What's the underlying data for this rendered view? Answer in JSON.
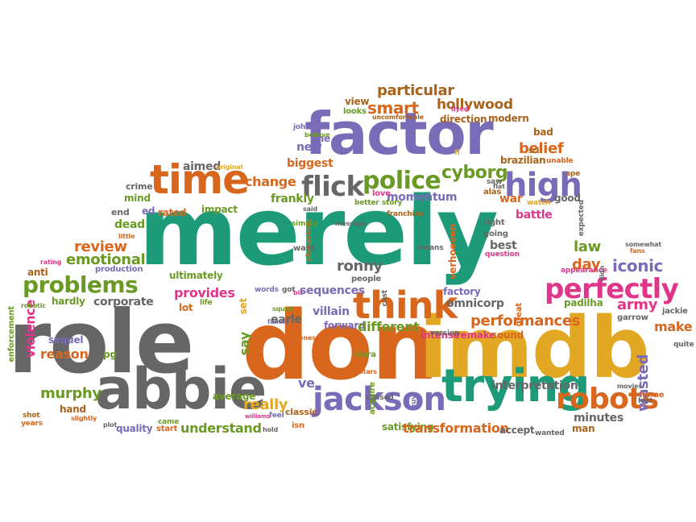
{
  "colors": {
    "green": "#1d9a78",
    "orange": "#d8661d",
    "purple": "#7a6bb8",
    "gray": "#666666",
    "yellow": "#e3a823",
    "pink": "#e0368a",
    "olive": "#6b9a24",
    "brown": "#a8621a"
  },
  "words": [
    {
      "t": "merely",
      "c": "green"
    },
    {
      "t": "role",
      "c": "gray"
    },
    {
      "t": "don",
      "c": "orange"
    },
    {
      "t": "imdb",
      "c": "yellow"
    },
    {
      "t": "factor",
      "c": "purple"
    },
    {
      "t": "abbie",
      "c": "gray"
    },
    {
      "t": "trying",
      "c": "green"
    },
    {
      "t": "time",
      "c": "orange"
    },
    {
      "t": "think",
      "c": "orange"
    },
    {
      "t": "jackson",
      "c": "purple"
    },
    {
      "t": "perfectly",
      "c": "pink"
    },
    {
      "t": "high",
      "c": "purple"
    },
    {
      "t": "flick",
      "c": "gray"
    },
    {
      "t": "police",
      "c": "olive"
    },
    {
      "t": "robots",
      "c": "orange"
    },
    {
      "t": "problems",
      "c": "olive"
    },
    {
      "t": "cyborg",
      "c": "olive"
    },
    {
      "t": "particular",
      "c": "brown"
    },
    {
      "t": "hollywood",
      "c": "brown"
    },
    {
      "t": "smart",
      "c": "orange"
    },
    {
      "t": "view",
      "c": "brown"
    },
    {
      "t": "looks",
      "c": "olive"
    },
    {
      "t": "uncomfortable",
      "c": "brown"
    },
    {
      "t": "direction",
      "c": "brown"
    },
    {
      "t": "modern",
      "c": "brown"
    },
    {
      "t": "bad",
      "c": "brown"
    },
    {
      "t": "belief",
      "c": "orange"
    },
    {
      "t": "brazilian",
      "c": "brown"
    },
    {
      "t": "unable",
      "c": "orange"
    },
    {
      "t": "sci",
      "c": "brown"
    },
    {
      "t": "ape",
      "c": "brown"
    },
    {
      "t": "fi",
      "c": "yellow"
    },
    {
      "t": "new",
      "c": "purple"
    },
    {
      "t": "biggest",
      "c": "orange"
    },
    {
      "t": "aimed",
      "c": "gray"
    },
    {
      "t": "original",
      "c": "yellow"
    },
    {
      "t": "change",
      "c": "orange"
    },
    {
      "t": "frankly",
      "c": "olive"
    },
    {
      "t": "crime",
      "c": "gray"
    },
    {
      "t": "mind",
      "c": "olive"
    },
    {
      "t": "end",
      "c": "gray"
    },
    {
      "t": "ed",
      "c": "purple"
    },
    {
      "t": "rated",
      "c": "orange"
    },
    {
      "t": "impact",
      "c": "olive"
    },
    {
      "t": "dead",
      "c": "olive"
    },
    {
      "t": "little",
      "c": "orange"
    },
    {
      "t": "review",
      "c": "orange"
    },
    {
      "t": "emotional",
      "c": "olive"
    },
    {
      "t": "rating",
      "c": "pink"
    },
    {
      "t": "anti",
      "c": "brown"
    },
    {
      "t": "production",
      "c": "purple"
    },
    {
      "t": "hardly",
      "c": "olive"
    },
    {
      "t": "corporate",
      "c": "gray"
    },
    {
      "t": "ultimately",
      "c": "olive"
    },
    {
      "t": "provides",
      "c": "pink"
    },
    {
      "t": "violence",
      "c": "pink"
    },
    {
      "t": "enforcement",
      "c": "olive"
    },
    {
      "t": "robotic",
      "c": "olive"
    },
    {
      "t": "reason",
      "c": "orange"
    },
    {
      "t": "pg",
      "c": "olive"
    },
    {
      "t": "sequel",
      "c": "purple"
    },
    {
      "t": "murphy",
      "c": "olive"
    },
    {
      "t": "hand",
      "c": "brown"
    },
    {
      "t": "slightly",
      "c": "orange"
    },
    {
      "t": "shot",
      "c": "brown"
    },
    {
      "t": "years",
      "c": "orange"
    },
    {
      "t": "quality",
      "c": "purple"
    },
    {
      "t": "plot",
      "c": "gray"
    },
    {
      "t": "came",
      "c": "olive"
    },
    {
      "t": "start",
      "c": "orange"
    },
    {
      "t": "understand",
      "c": "olive"
    },
    {
      "t": "average",
      "c": "olive"
    },
    {
      "t": "really",
      "c": "yellow"
    },
    {
      "t": "feel",
      "c": "purple"
    },
    {
      "t": "williams",
      "c": "pink"
    },
    {
      "t": "classic",
      "c": "brown"
    },
    {
      "t": "hold",
      "c": "gray"
    },
    {
      "t": "isn",
      "c": "orange"
    },
    {
      "t": "ve",
      "c": "purple"
    },
    {
      "t": "say",
      "c": "olive"
    },
    {
      "t": "set",
      "c": "yellow"
    },
    {
      "t": "lot",
      "c": "orange"
    },
    {
      "t": "life",
      "c": "olive"
    },
    {
      "t": "words",
      "c": "purple"
    },
    {
      "t": "got",
      "c": "gray"
    },
    {
      "t": "bit",
      "c": "pink"
    },
    {
      "t": "family",
      "c": "purple"
    },
    {
      "t": "squad",
      "c": "olive"
    },
    {
      "t": "earle",
      "c": "gray"
    },
    {
      "t": "villain",
      "c": "purple"
    },
    {
      "t": "forward",
      "c": "purple"
    },
    {
      "t": "sequences",
      "c": "purple"
    },
    {
      "t": "people",
      "c": "gray"
    },
    {
      "t": "ronny",
      "c": "gray"
    },
    {
      "t": "different",
      "c": "olive"
    },
    {
      "t": "clara",
      "c": "olive"
    },
    {
      "t": "scenes",
      "c": "orange"
    },
    {
      "t": "caused",
      "c": "gray"
    },
    {
      "t": "acquire",
      "c": "olive"
    },
    {
      "t": "guy",
      "c": "purple"
    },
    {
      "t": "satisfying",
      "c": "olive"
    },
    {
      "t": "transformation",
      "c": "orange"
    },
    {
      "t": "performances",
      "c": "orange"
    },
    {
      "t": "intense",
      "c": "pink"
    },
    {
      "t": "remake",
      "c": "pink"
    },
    {
      "t": "sound",
      "c": "orange"
    },
    {
      "t": "version",
      "c": "gray"
    },
    {
      "t": "factory",
      "c": "purple"
    },
    {
      "t": "omnicorp",
      "c": "gray"
    },
    {
      "t": "verhoeven",
      "c": "orange"
    },
    {
      "t": "means",
      "c": "gray"
    },
    {
      "t": "cast",
      "c": "gray"
    },
    {
      "t": "interpretation",
      "c": "gray"
    },
    {
      "t": "accept",
      "c": "gray"
    },
    {
      "t": "wanted",
      "c": "gray"
    },
    {
      "t": "minutes",
      "c": "gray"
    },
    {
      "t": "man",
      "c": "brown"
    },
    {
      "t": "wasted",
      "c": "purple"
    },
    {
      "t": "lost",
      "c": "gray"
    },
    {
      "t": "home",
      "c": "orange"
    },
    {
      "t": "movies",
      "c": "gray"
    },
    {
      "t": "quite",
      "c": "gray"
    },
    {
      "t": "make",
      "c": "orange"
    },
    {
      "t": "jackie",
      "c": "gray"
    },
    {
      "t": "garrow",
      "c": "gray"
    },
    {
      "t": "army",
      "c": "pink"
    },
    {
      "t": "padilha",
      "c": "olive"
    },
    {
      "t": "great",
      "c": "orange"
    },
    {
      "t": "day",
      "c": "orange"
    },
    {
      "t": "iconic",
      "c": "purple"
    },
    {
      "t": "law",
      "c": "olive"
    },
    {
      "t": "best",
      "c": "gray"
    },
    {
      "t": "question",
      "c": "pink"
    },
    {
      "t": "appearance",
      "c": "pink"
    },
    {
      "t": "fans",
      "c": "orange"
    },
    {
      "t": "somewhat",
      "c": "gray"
    },
    {
      "t": "expected",
      "c": "gray"
    },
    {
      "t": "battle",
      "c": "pink"
    },
    {
      "t": "right",
      "c": "gray"
    },
    {
      "t": "going",
      "c": "gray"
    },
    {
      "t": "war",
      "c": "orange"
    },
    {
      "t": "watch",
      "c": "yellow"
    },
    {
      "t": "good",
      "c": "gray"
    },
    {
      "t": "alas",
      "c": "brown"
    },
    {
      "t": "saw",
      "c": "gray"
    },
    {
      "t": "flat",
      "c": "gray"
    },
    {
      "t": "momentum",
      "c": "purple"
    },
    {
      "t": "love",
      "c": "pink"
    },
    {
      "t": "franchise",
      "c": "brown"
    },
    {
      "t": "story",
      "c": "olive"
    },
    {
      "t": "better",
      "c": "olive"
    },
    {
      "t": "line",
      "c": "purple"
    },
    {
      "t": "simply",
      "c": "olive"
    },
    {
      "t": "characters",
      "c": "orange"
    },
    {
      "t": "said",
      "c": "gray"
    },
    {
      "t": "want",
      "c": "gray"
    },
    {
      "t": "message",
      "c": "gray"
    },
    {
      "t": "john",
      "c": "purple"
    },
    {
      "t": "believe",
      "c": "olive"
    },
    {
      "t": "didn",
      "c": "gray"
    },
    {
      "t": "stars",
      "c": "orange"
    },
    {
      "t": "dyed",
      "c": "pink"
    }
  ]
}
